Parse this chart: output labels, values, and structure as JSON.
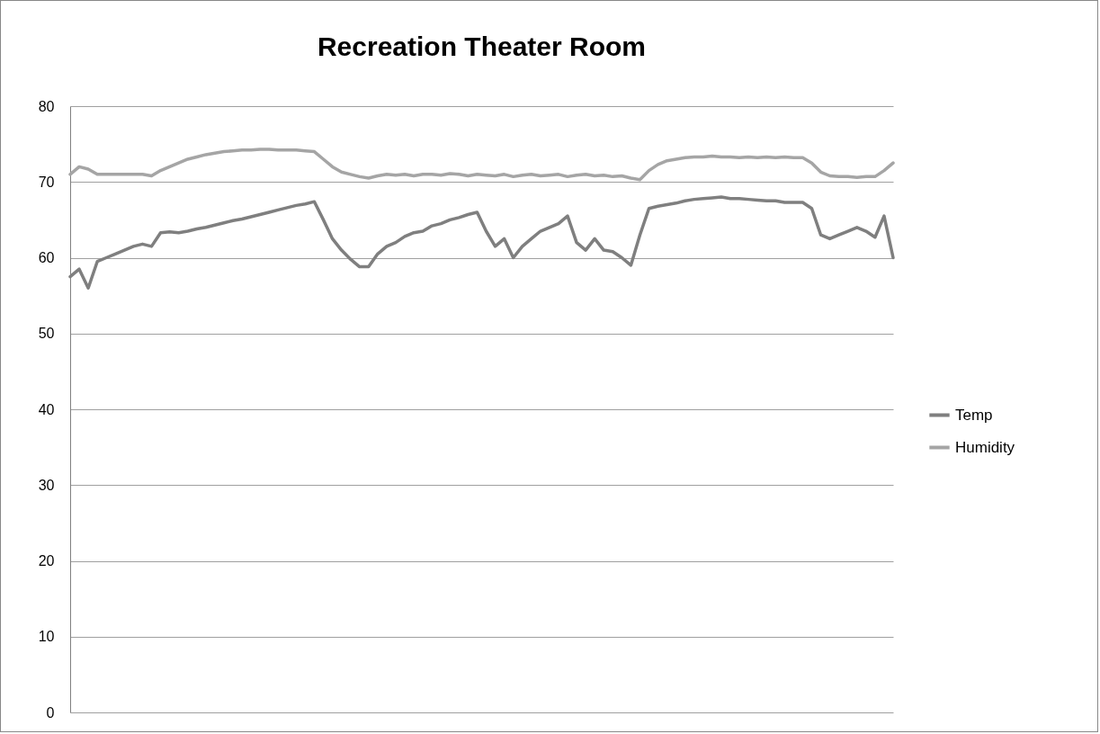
{
  "chart_data": {
    "type": "line",
    "title": "Recreation Theater Room",
    "categories": [
      null,
      null,
      null,
      null,
      null,
      null,
      null,
      null,
      null,
      null,
      null,
      null,
      null,
      null,
      null,
      null,
      null,
      null,
      null,
      null,
      null,
      null,
      null,
      null,
      null,
      null,
      null,
      null,
      null,
      null,
      null,
      null,
      null,
      null,
      null,
      null,
      null,
      null,
      null,
      null,
      null,
      null,
      null,
      null,
      null,
      null,
      null,
      null,
      null,
      null,
      null,
      null,
      null,
      null,
      null,
      null,
      null,
      null,
      null,
      null,
      null,
      null,
      null,
      null,
      null,
      null,
      null,
      null,
      null,
      null,
      null,
      null,
      null,
      null,
      null,
      null,
      null,
      null,
      null,
      null,
      null,
      null,
      null,
      null,
      null,
      null,
      null,
      null,
      null,
      null,
      null,
      null
    ],
    "series": [
      {
        "name": "Temp",
        "color": "#7f7f7f",
        "values": [
          57.5,
          58.5,
          56,
          59.5,
          60,
          60.5,
          61,
          61.5,
          61.8,
          61.5,
          63.3,
          63.4,
          63.3,
          63.5,
          63.8,
          64,
          64.3,
          64.6,
          64.9,
          65.1,
          65.4,
          65.7,
          66,
          66.3,
          66.6,
          66.9,
          67.1,
          67.4,
          65,
          62.5,
          61,
          59.8,
          58.8,
          58.8,
          60.5,
          61.5,
          62,
          62.8,
          63.3,
          63.5,
          64.2,
          64.5,
          65,
          65.3,
          65.7,
          66,
          63.5,
          61.5,
          62.5,
          60,
          61.5,
          62.5,
          63.5,
          64,
          64.5,
          65.5,
          62,
          61,
          62.5,
          61,
          60.8,
          60,
          59,
          63,
          66.5,
          66.8,
          67,
          67.2,
          67.5,
          67.7,
          67.8,
          67.9,
          68,
          67.8,
          67.8,
          67.7,
          67.6,
          67.5,
          67.5,
          67.3,
          67.3,
          67.3,
          66.5,
          63,
          62.5,
          63,
          63.5,
          64,
          63.5,
          62.7,
          65.5,
          60
        ]
      },
      {
        "name": "Humidity",
        "color": "#a5a5a5",
        "values": [
          71,
          72,
          71.7,
          71,
          71,
          71,
          71,
          71,
          71,
          70.8,
          71.5,
          72,
          72.5,
          73,
          73.3,
          73.6,
          73.8,
          74,
          74.1,
          74.2,
          74.2,
          74.3,
          74.3,
          74.2,
          74.2,
          74.2,
          74.1,
          74,
          73,
          72,
          71.3,
          71,
          70.7,
          70.5,
          70.8,
          71,
          70.9,
          71,
          70.8,
          71,
          71,
          70.9,
          71.1,
          71,
          70.8,
          71,
          70.9,
          70.8,
          71,
          70.7,
          70.9,
          71,
          70.8,
          70.9,
          71,
          70.7,
          70.9,
          71,
          70.8,
          70.9,
          70.7,
          70.8,
          70.5,
          70.3,
          71.5,
          72.3,
          72.8,
          73,
          73.2,
          73.3,
          73.3,
          73.4,
          73.3,
          73.3,
          73.2,
          73.3,
          73.2,
          73.3,
          73.2,
          73.3,
          73.2,
          73.2,
          72.5,
          71.3,
          70.8,
          70.7,
          70.7,
          70.6,
          70.7,
          70.7,
          71.5,
          72.5
        ]
      }
    ],
    "ylim": [
      0,
      80
    ],
    "yticks": [
      0,
      10,
      20,
      30,
      40,
      50,
      60,
      70,
      80
    ],
    "grid": "y",
    "legend": "right"
  }
}
